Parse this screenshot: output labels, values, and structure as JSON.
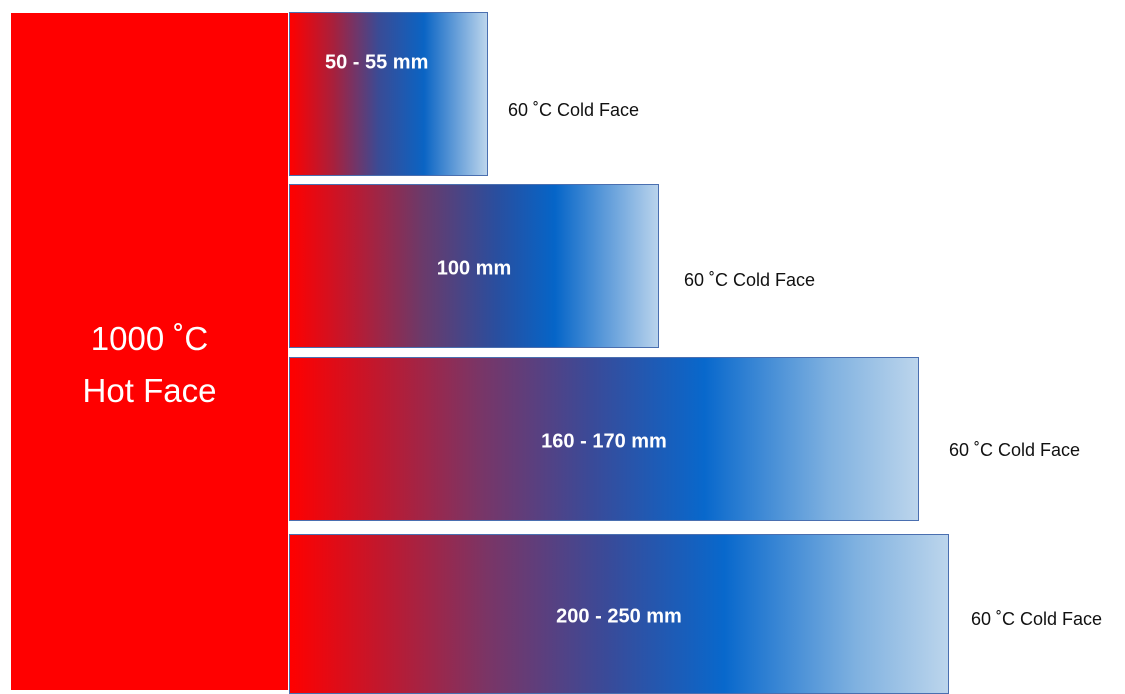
{
  "hot_face": {
    "line1": "1000 ˚C",
    "line2": "Hot Face",
    "color": "#ff0000"
  },
  "layers": [
    {
      "thickness": "50 - 55 mm",
      "cold_face": "60 ˚C Cold Face"
    },
    {
      "thickness": "100 mm",
      "cold_face": "60 ˚C Cold Face"
    },
    {
      "thickness": "160 - 170 mm",
      "cold_face": "60 ˚C Cold Face"
    },
    {
      "thickness": "200 - 250 mm",
      "cold_face": "60 ˚C Cold Face"
    }
  ],
  "colors": {
    "hot": "#ff0000",
    "mid": "#0565c8",
    "cold": "#bcd5ec"
  }
}
